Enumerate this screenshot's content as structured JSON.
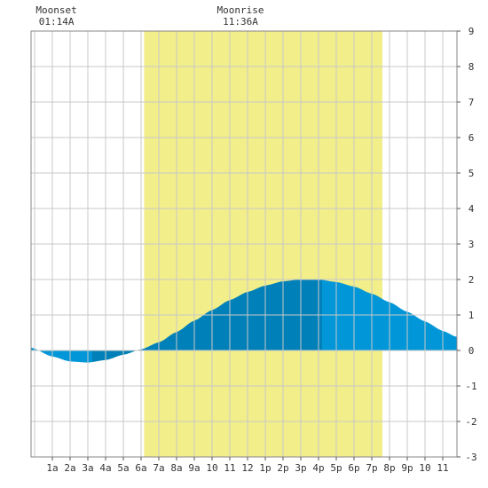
{
  "chart_data": {
    "type": "area",
    "title": "",
    "xlabel": "",
    "ylabel": "",
    "x_range_hours": [
      -0.2,
      23.8
    ],
    "ylim": [
      -3,
      9
    ],
    "grid": true,
    "x_tick_labels": [
      "1a",
      "2a",
      "3a",
      "4a",
      "5a",
      "6a",
      "7a",
      "8a",
      "9a",
      "10",
      "11",
      "12",
      "1p",
      "2p",
      "3p",
      "4p",
      "5p",
      "6p",
      "7p",
      "8p",
      "9p",
      "10",
      "11"
    ],
    "x_tick_hours": [
      1,
      2,
      3,
      4,
      5,
      6,
      7,
      8,
      9,
      10,
      11,
      12,
      13,
      14,
      15,
      16,
      17,
      18,
      19,
      20,
      21,
      22,
      23
    ],
    "y_ticks": [
      -3,
      -2,
      -1,
      0,
      1,
      2,
      3,
      4,
      5,
      6,
      7,
      8,
      9
    ],
    "daylight": {
      "start_hour": 6.17,
      "end_hour": 19.6,
      "color": "#f2ee8a"
    },
    "moon_events": [
      {
        "label": "Moonset",
        "time": "01:14A",
        "hour": 1.23
      },
      {
        "label": "Moonrise",
        "time": "11:36A",
        "hour": 11.6
      }
    ],
    "tide_points": [
      {
        "hour": -0.2,
        "height": 0.08
      },
      {
        "hour": 1,
        "height": -0.17
      },
      {
        "hour": 2,
        "height": -0.31
      },
      {
        "hour": 3,
        "height": -0.34
      },
      {
        "hour": 4,
        "height": -0.27
      },
      {
        "hour": 5,
        "height": -0.12
      },
      {
        "hour": 6,
        "height": 0.03
      },
      {
        "hour": 7,
        "height": 0.23
      },
      {
        "hour": 8,
        "height": 0.52
      },
      {
        "hour": 9,
        "height": 0.84
      },
      {
        "hour": 10,
        "height": 1.14
      },
      {
        "hour": 11,
        "height": 1.42
      },
      {
        "hour": 12,
        "height": 1.65
      },
      {
        "hour": 13,
        "height": 1.83
      },
      {
        "hour": 14,
        "height": 1.95
      },
      {
        "hour": 15,
        "height": 2.0
      },
      {
        "hour": 16,
        "height": 2.0
      },
      {
        "hour": 17,
        "height": 1.93
      },
      {
        "hour": 18,
        "height": 1.8
      },
      {
        "hour": 19,
        "height": 1.6
      },
      {
        "hour": 20,
        "height": 1.36
      },
      {
        "hour": 21,
        "height": 1.09
      },
      {
        "hour": 22,
        "height": 0.82
      },
      {
        "hour": 23,
        "height": 0.55
      },
      {
        "hour": 23.8,
        "height": 0.38
      }
    ],
    "tide_segments": [
      {
        "from_hour": -0.2,
        "to_hour": 3.25,
        "color": "#0096d8"
      },
      {
        "from_hour": 3.25,
        "to_hour": 6.2,
        "color": "#0080b8"
      },
      {
        "from_hour": 6.2,
        "to_hour": 16.2,
        "color": "#0080b8"
      },
      {
        "from_hour": 16.2,
        "to_hour": 23.8,
        "color": "#0096d8"
      }
    ],
    "colors": {
      "grid": "#c8c8c8",
      "background": "#ffffff",
      "border": "#888888"
    }
  }
}
